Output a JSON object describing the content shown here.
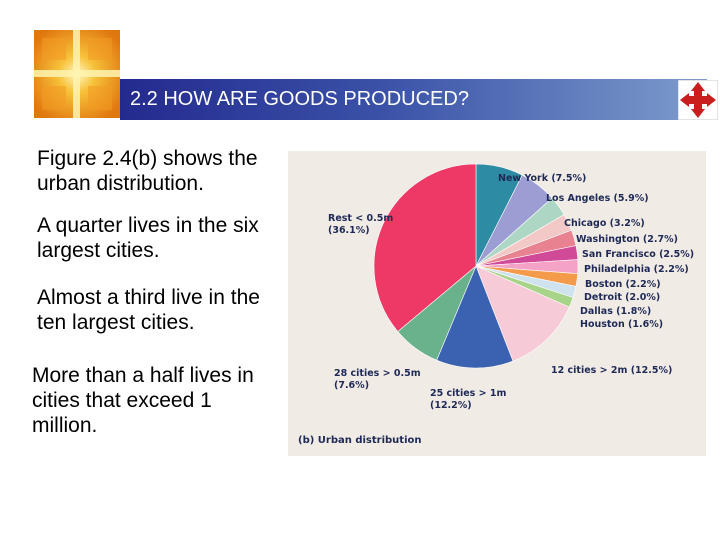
{
  "slide": {
    "title": "2.2 HOW ARE GOODS PRODUCED?",
    "paragraphs": [
      "Figure 2.4(b) shows the urban distribution.",
      "A quarter lives in the six largest cities.",
      "Almost a third live in the ten largest cities.",
      "More than a half lives in cities that exceed 1 million."
    ]
  },
  "colors": {
    "title_bar": "#2d3f98",
    "accent": "#c81e1e",
    "chart_bg": "#f1ebe6"
  },
  "icons": {
    "logo": "sunburst-cross-logo",
    "nav": "red-four-arrow-navigation-icon"
  },
  "chart_data": {
    "type": "pie",
    "caption": "(b) Urban distribution",
    "slices": [
      {
        "name": "New York",
        "value": 7.5,
        "label": "New York (7.5%)",
        "color": "#2e8ba4"
      },
      {
        "name": "Los Angeles",
        "value": 5.9,
        "label": "Los Angeles (5.9%)",
        "color": "#9b9dd3"
      },
      {
        "name": "Chicago",
        "value": 3.2,
        "label": "Chicago (3.2%)",
        "color": "#aed6c4"
      },
      {
        "name": "Washington",
        "value": 2.7,
        "label": "Washington (2.7%)",
        "color": "#f3c9c7"
      },
      {
        "name": "San Francisco",
        "value": 2.5,
        "label": "San Francisco (2.5%)",
        "color": "#e98290"
      },
      {
        "name": "Philadelphia",
        "value": 2.2,
        "label": "Philadelphia (2.2%)",
        "color": "#d04a97"
      },
      {
        "name": "Boston",
        "value": 2.2,
        "label": "Boston (2.2%)",
        "color": "#f4a2c6"
      },
      {
        "name": "Detroit",
        "value": 2.0,
        "label": "Detroit (2.0%)",
        "color": "#f39a4b"
      },
      {
        "name": "Dallas",
        "value": 1.8,
        "label": "Dallas (1.8%)",
        "color": "#cfe3ef"
      },
      {
        "name": "Houston",
        "value": 1.6,
        "label": "Houston (1.6%)",
        "color": "#a8d48a"
      },
      {
        "name": "12 cities > 2m",
        "value": 12.5,
        "label": "12 cities > 2m (12.5%)",
        "color": "#f6cad7"
      },
      {
        "name": "25 cities > 1m",
        "value": 12.2,
        "label_lines": [
          "25 cities > 1m",
          "(12.2%)"
        ],
        "color": "#3b62b0"
      },
      {
        "name": "28 cities > 0.5m",
        "value": 7.6,
        "label_lines": [
          "28 cities > 0.5m",
          "(7.6%)"
        ],
        "color": "#69b28b"
      },
      {
        "name": "Rest < 0.5m",
        "value": 36.1,
        "label_lines": [
          "Rest < 0.5m",
          "(36.1%)"
        ],
        "color": "#ee3966"
      }
    ]
  }
}
